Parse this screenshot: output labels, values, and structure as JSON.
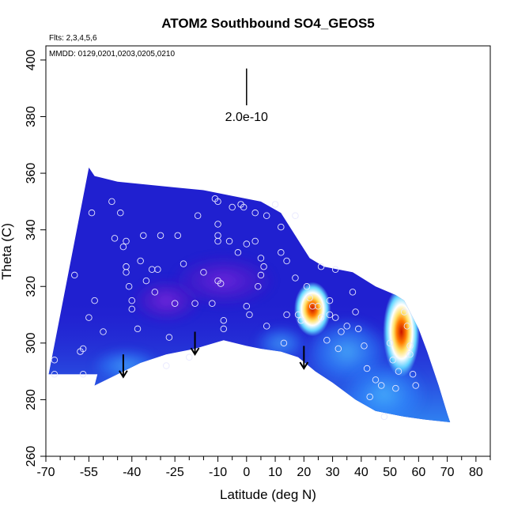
{
  "chart_data": {
    "type": "heatmap",
    "title": "ATOM2 Southbound SO4_GEOS5",
    "xlabel": "Latitude (deg N)",
    "ylabel": "Theta (C)",
    "notes": [
      "Flts: 2,3,4,5,6",
      "MMDD: 0129,0201,0203,0205,0210"
    ],
    "xlim": [
      -70,
      85
    ],
    "ylim": [
      260,
      405
    ],
    "x_ticks": [
      -70,
      -55,
      -40,
      -25,
      -10,
      0,
      10,
      20,
      30,
      40,
      50,
      60,
      70,
      80
    ],
    "x_tick_labels": [
      "-70",
      "-55",
      "-40",
      "-25",
      "-10",
      "0",
      "10",
      "20",
      "30",
      "40",
      "50",
      "60",
      "70",
      "80"
    ],
    "x_minor_ticks": [
      -65,
      -60,
      -50,
      -45,
      -35,
      -30,
      -20,
      -15,
      -5,
      5,
      15,
      25,
      35,
      45,
      55,
      65,
      75,
      85
    ],
    "y_ticks": [
      260,
      280,
      300,
      320,
      340,
      360,
      380,
      400
    ],
    "y_tick_labels": [
      "260",
      "280",
      "300",
      "320",
      "340",
      "360",
      "380",
      "400"
    ],
    "grid": false,
    "scale_bar": {
      "label": "2.0e-10",
      "x": 0,
      "y_range": [
        384,
        397
      ]
    },
    "colors": {
      "high": "#cc1a00",
      "mid": "#ffffff",
      "low": "#00008b",
      "background": "#2020d0"
    },
    "domain_top": [
      [
        -55,
        362
      ],
      [
        -53,
        359
      ],
      [
        -45,
        357
      ],
      [
        -35,
        356
      ],
      [
        -25,
        355
      ],
      [
        -15,
        354
      ],
      [
        -5,
        352
      ],
      [
        5,
        350
      ],
      [
        12,
        346
      ],
      [
        17,
        338
      ],
      [
        22,
        330
      ],
      [
        27,
        327
      ],
      [
        32,
        326
      ],
      [
        37,
        325
      ],
      [
        45,
        320
      ],
      [
        52,
        317
      ],
      [
        55,
        315
      ],
      [
        60,
        305
      ],
      [
        63,
        297
      ],
      [
        67,
        285
      ],
      [
        70,
        275
      ],
      [
        71,
        272
      ]
    ],
    "domain_bottom": [
      [
        -69,
        289
      ],
      [
        -52,
        289
      ],
      [
        -53,
        285
      ],
      [
        -43,
        290
      ],
      [
        -37,
        293
      ],
      [
        -28,
        296
      ],
      [
        -18,
        298
      ],
      [
        -8,
        301
      ],
      [
        0,
        299
      ],
      [
        5,
        298
      ],
      [
        12,
        297
      ],
      [
        18,
        295
      ],
      [
        24,
        290
      ],
      [
        30,
        286
      ],
      [
        38,
        280
      ],
      [
        45,
        276
      ],
      [
        55,
        274
      ],
      [
        62,
        273
      ],
      [
        71,
        272
      ]
    ],
    "hotspots": [
      {
        "lat": 23,
        "theta": 312,
        "rx": 4,
        "ry": 6,
        "intensity": 1.0
      },
      {
        "lat": 54,
        "theta": 304,
        "rx": 4,
        "ry": 10,
        "intensity": 1.0
      },
      {
        "lat": -28,
        "theta": 315,
        "rx": 8,
        "ry": 5,
        "intensity": -0.6
      },
      {
        "lat": -8,
        "theta": 322,
        "rx": 12,
        "ry": 6,
        "intensity": -0.4
      },
      {
        "lat": 35,
        "theta": 297,
        "rx": 10,
        "ry": 8,
        "intensity": 0.55
      },
      {
        "lat": 48,
        "theta": 282,
        "rx": 10,
        "ry": 8,
        "intensity": 0.5
      },
      {
        "lat": -42,
        "theta": 292,
        "rx": 8,
        "ry": 4,
        "intensity": 0.35
      },
      {
        "lat": 12,
        "theta": 300,
        "rx": 6,
        "ry": 4,
        "intensity": 0.3
      }
    ],
    "arrows": [
      {
        "lat": -43,
        "theta_tip": 288,
        "theta_tail": 296
      },
      {
        "lat": -18,
        "theta_tip": 296,
        "theta_tail": 304
      },
      {
        "lat": 20,
        "theta_tip": 291,
        "theta_tail": 299
      }
    ],
    "samples": [
      [
        -67,
        289
      ],
      [
        -67,
        294
      ],
      [
        -60,
        324
      ],
      [
        -58,
        297
      ],
      [
        -57,
        298
      ],
      [
        -57,
        289
      ],
      [
        -55,
        309
      ],
      [
        -54,
        346
      ],
      [
        -53,
        315
      ],
      [
        -50,
        304
      ],
      [
        -47,
        350
      ],
      [
        -46,
        337
      ],
      [
        -44,
        346
      ],
      [
        -43,
        334
      ],
      [
        -42,
        336
      ],
      [
        -42,
        327
      ],
      [
        -42,
        325
      ],
      [
        -41,
        320
      ],
      [
        -40,
        315
      ],
      [
        -40,
        312
      ],
      [
        -38,
        305
      ],
      [
        -37,
        329
      ],
      [
        -36,
        338
      ],
      [
        -35,
        322
      ],
      [
        -33,
        326
      ],
      [
        -32,
        318
      ],
      [
        -31,
        326
      ],
      [
        -30,
        338
      ],
      [
        -28,
        292
      ],
      [
        -27,
        302
      ],
      [
        -25,
        314
      ],
      [
        -24,
        338
      ],
      [
        -22,
        328
      ],
      [
        -20,
        295
      ],
      [
        -18,
        314
      ],
      [
        -17,
        345
      ],
      [
        -15,
        325
      ],
      [
        -12,
        314
      ],
      [
        -11,
        351
      ],
      [
        -10,
        350
      ],
      [
        -10,
        342
      ],
      [
        -10,
        338
      ],
      [
        -10,
        336
      ],
      [
        -10,
        322
      ],
      [
        -9,
        321
      ],
      [
        -8,
        308
      ],
      [
        -8,
        305
      ],
      [
        -6,
        336
      ],
      [
        -5,
        348
      ],
      [
        -3,
        332
      ],
      [
        -2,
        349
      ],
      [
        -1,
        348
      ],
      [
        0,
        335
      ],
      [
        0,
        313
      ],
      [
        1,
        310
      ],
      [
        3,
        346
      ],
      [
        3,
        336
      ],
      [
        4,
        320
      ],
      [
        5,
        330
      ],
      [
        5,
        324
      ],
      [
        6,
        327
      ],
      [
        7,
        345
      ],
      [
        7,
        306
      ],
      [
        10,
        349
      ],
      [
        12,
        341
      ],
      [
        12,
        332
      ],
      [
        13,
        300
      ],
      [
        14,
        310
      ],
      [
        14,
        329
      ],
      [
        17,
        345
      ],
      [
        17,
        323
      ],
      [
        18,
        310
      ],
      [
        19,
        308
      ],
      [
        21,
        320
      ],
      [
        22,
        316
      ],
      [
        23,
        313
      ],
      [
        25,
        313
      ],
      [
        26,
        327
      ],
      [
        26,
        309
      ],
      [
        28,
        301
      ],
      [
        29,
        315
      ],
      [
        29,
        310
      ],
      [
        31,
        309
      ],
      [
        31,
        326
      ],
      [
        32,
        298
      ],
      [
        33,
        304
      ],
      [
        35,
        306
      ],
      [
        37,
        318
      ],
      [
        38,
        311
      ],
      [
        39,
        305
      ],
      [
        41,
        299
      ],
      [
        42,
        291
      ],
      [
        43,
        281
      ],
      [
        45,
        287
      ],
      [
        47,
        285
      ],
      [
        48,
        274
      ],
      [
        50,
        300
      ],
      [
        51,
        294
      ],
      [
        52,
        284
      ],
      [
        53,
        290
      ],
      [
        55,
        311
      ],
      [
        56,
        306
      ],
      [
        57,
        299
      ],
      [
        57,
        296
      ],
      [
        58,
        289
      ],
      [
        59,
        285
      ]
    ]
  }
}
